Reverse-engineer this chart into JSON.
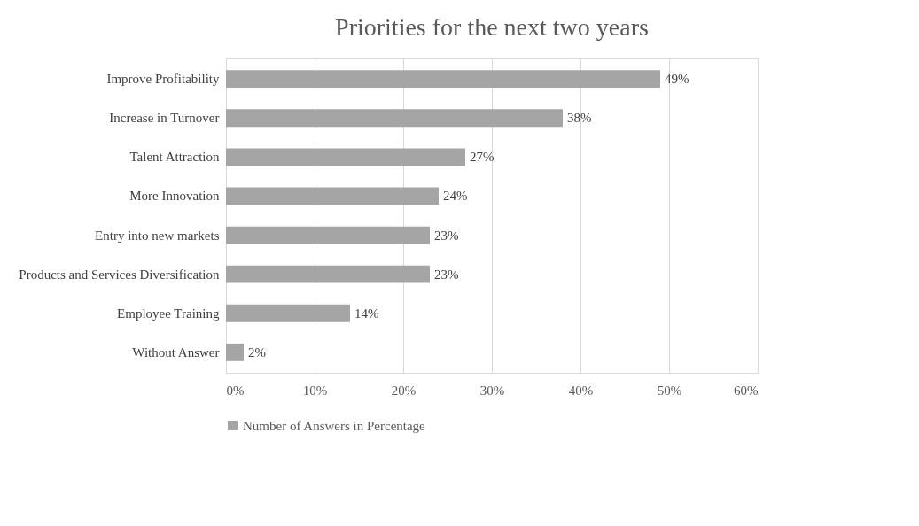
{
  "chart_data": {
    "type": "bar",
    "orientation": "horizontal",
    "title": "Priorities for the next two years",
    "categories": [
      "Improve Profitability",
      "Increase in Turnover",
      "Talent Attraction",
      "More Innovation",
      "Entry into new markets",
      "Products and Services Diversification",
      "Employee Training",
      "Without Answer"
    ],
    "series": [
      {
        "name": "Number of Answers in Percentage",
        "color": "#a5a5a5",
        "values": [
          49,
          38,
          27,
          24,
          23,
          23,
          14,
          2
        ],
        "value_labels": [
          "49%",
          "38%",
          "27%",
          "24%",
          "23%",
          "23%",
          "14%",
          "2%"
        ]
      }
    ],
    "xlim": [
      0,
      60
    ],
    "xticks": [
      {
        "value": 0,
        "label": "0%"
      },
      {
        "value": 10,
        "label": "10%"
      },
      {
        "value": 20,
        "label": "20%"
      },
      {
        "value": 30,
        "label": "30%"
      },
      {
        "value": 40,
        "label": "40%"
      },
      {
        "value": 50,
        "label": "50%"
      },
      {
        "value": 60,
        "label": "60%"
      }
    ],
    "grid": "x",
    "legend": "bottom"
  }
}
